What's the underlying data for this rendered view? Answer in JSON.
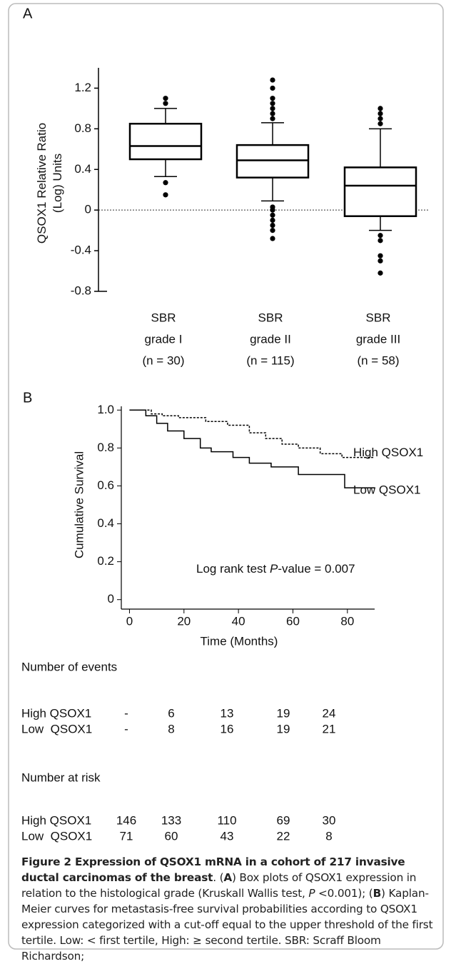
{
  "panels": {
    "a": "A",
    "b": "B"
  },
  "chart_data": [
    {
      "type": "box",
      "y_label": [
        "QSOX1 Relative Ratio",
        "(Log) Units"
      ],
      "categories": [
        [
          "SBR",
          "grade I",
          "(n = 30)"
        ],
        [
          "SBR",
          "grade II",
          "(n = 115)"
        ],
        [
          "SBR",
          "grade III",
          "(n = 58)"
        ]
      ],
      "boxes": [
        {
          "whisker_low": 0.33,
          "q1": 0.5,
          "median": 0.63,
          "q3": 0.85,
          "whisker_high": 1.0,
          "outliers": [
            1.1,
            1.05,
            0.27,
            0.15
          ]
        },
        {
          "whisker_low": 0.09,
          "q1": 0.32,
          "median": 0.49,
          "q3": 0.64,
          "whisker_high": 0.86,
          "outliers": [
            0.9,
            0.95,
            1.0,
            1.05,
            1.1,
            1.2,
            1.28,
            0.03,
            0,
            -0.05,
            -0.1,
            -0.15,
            -0.2,
            -0.28
          ]
        },
        {
          "whisker_low": -0.2,
          "q1": -0.06,
          "median": 0.24,
          "q3": 0.42,
          "whisker_high": 0.8,
          "outliers": [
            0.85,
            0.9,
            0.95,
            1.0,
            -0.25,
            -0.3,
            -0.45,
            -0.5,
            -0.62
          ]
        }
      ],
      "reference_line": 0,
      "ylim": [
        -0.8,
        1.4
      ],
      "yticks": [
        1.2,
        0.8,
        0.4,
        0,
        -0.4,
        -0.8
      ]
    },
    {
      "type": "line",
      "y_label": "Cumulative Survival",
      "x_label": "Time (Months)",
      "series": [
        {
          "name": "High QSOX1",
          "dash": true,
          "x": [
            0,
            8,
            8,
            12,
            12,
            18,
            18,
            28,
            28,
            36,
            36,
            44,
            44,
            50,
            50,
            56,
            56,
            62,
            62,
            70,
            70,
            78,
            78,
            90
          ],
          "values": [
            1.0,
            1.0,
            0.98,
            0.98,
            0.97,
            0.97,
            0.96,
            0.96,
            0.94,
            0.94,
            0.92,
            0.92,
            0.88,
            0.88,
            0.85,
            0.85,
            0.82,
            0.82,
            0.8,
            0.8,
            0.77,
            0.77,
            0.75,
            0.75
          ]
        },
        {
          "name": "Low QSOX1",
          "dash": false,
          "x": [
            0,
            6,
            6,
            10,
            10,
            14,
            14,
            20,
            20,
            26,
            26,
            30,
            30,
            38,
            38,
            44,
            44,
            52,
            52,
            62,
            62,
            79,
            79,
            90
          ],
          "values": [
            1.0,
            1.0,
            0.97,
            0.97,
            0.93,
            0.93,
            0.89,
            0.89,
            0.85,
            0.85,
            0.8,
            0.8,
            0.78,
            0.78,
            0.75,
            0.75,
            0.72,
            0.72,
            0.7,
            0.7,
            0.66,
            0.66,
            0.59,
            0.59
          ]
        }
      ],
      "annotation": [
        "Log rank test ",
        "P",
        "-value = 0.007"
      ],
      "xlim": [
        -3,
        90
      ],
      "xticks": [
        0,
        20,
        40,
        60,
        80
      ],
      "ylim": [
        -0.05,
        1.05
      ],
      "yticks": [
        {
          "value": 1,
          "label": "1.0"
        },
        0.8,
        0.6,
        0.4,
        0.2,
        0
      ]
    }
  ],
  "tables": [
    {
      "title": "Number of events",
      "rows": [
        [
          "High QSOX1",
          "-",
          6,
          13,
          19,
          24
        ],
        [
          "Low  QSOX1",
          "-",
          8,
          16,
          19,
          21
        ]
      ]
    },
    {
      "title": "Number at risk",
      "rows": [
        [
          "High QSOX1",
          146,
          133,
          110,
          69,
          30
        ],
        [
          "Low  QSOX1",
          71,
          60,
          43,
          22,
          8
        ]
      ]
    }
  ],
  "caption": [
    {
      "text": "Figure 2 Expression of QSOX1 mRNA in a cohort of 217 invasive ductal carcinomas of the breast",
      "style": "bold"
    },
    {
      "text": ". (",
      "style": "normal"
    },
    {
      "text": "A",
      "style": "bold"
    },
    {
      "text": ") Box plots of QSOX1 expression in relation to the histological grade (Kruskall Wallis test, ",
      "style": "normal"
    },
    {
      "text": "P",
      "style": "italic"
    },
    {
      "text": " <0.001); (",
      "style": "normal"
    },
    {
      "text": "B",
      "style": "bold"
    },
    {
      "text": ") Kaplan-Meier curves for metastasis-free survival probabilities according to QSOX1 expression categorized with a cut-off equal to the upper threshold of the first tertile. Low: < first tertile, High: ≥ second tertile. SBR: Scraff Bloom Richardson;",
      "style": "normal"
    }
  ]
}
